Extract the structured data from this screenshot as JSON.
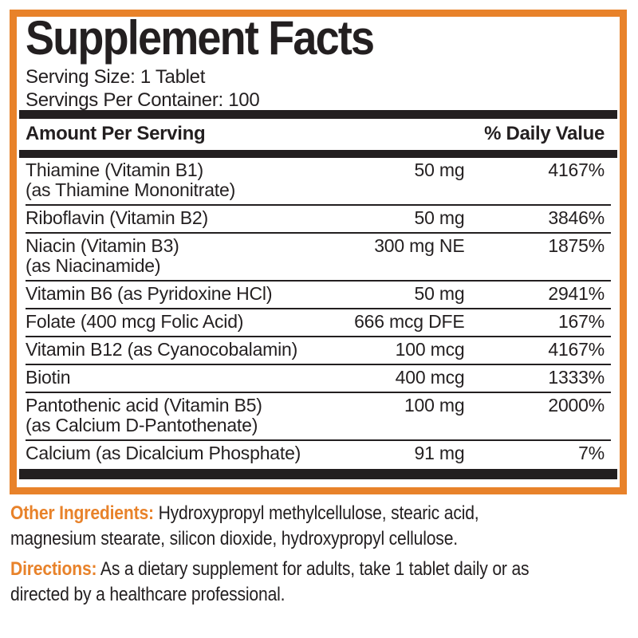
{
  "panel": {
    "title": "Supplement Facts",
    "serving_size": "Serving Size: 1 Tablet",
    "servings_per_container": "Servings Per Container: 100",
    "header": {
      "amount_per_serving": "Amount Per Serving",
      "daily_value": "% Daily Value"
    }
  },
  "nutrients": [
    {
      "name": "Thiamine (Vitamin B1)",
      "sub": "(as Thiamine Mononitrate)",
      "amount": "50 mg",
      "daily_value": "4167%"
    },
    {
      "name": "Riboflavin (Vitamin B2)",
      "sub": "",
      "amount": "50 mg",
      "daily_value": "3846%"
    },
    {
      "name": "Niacin (Vitamin B3)",
      "sub": "(as Niacinamide)",
      "amount": "300 mg NE",
      "daily_value": "1875%"
    },
    {
      "name": "Vitamin B6 (as Pyridoxine HCl)",
      "sub": "",
      "amount": "50 mg",
      "daily_value": "2941%"
    },
    {
      "name": "Folate (400 mcg Folic Acid)",
      "sub": "",
      "amount": "666 mcg DFE",
      "daily_value": "167%"
    },
    {
      "name": "Vitamin B12 (as Cyanocobalamin)",
      "sub": "",
      "amount": "100 mcg",
      "daily_value": "4167%"
    },
    {
      "name": "Biotin",
      "sub": "",
      "amount": "400 mcg",
      "daily_value": "1333%"
    },
    {
      "name": "Pantothenic acid (Vitamin B5)",
      "sub": "(as Calcium D-Pantothenate)",
      "amount": "100 mg",
      "daily_value": "2000%"
    },
    {
      "name": "Calcium (as Dicalcium Phosphate)",
      "sub": "",
      "amount": "91 mg",
      "daily_value": "7%"
    }
  ],
  "other_ingredients": {
    "label": "Other Ingredients:",
    "line1_rest": " Hydroxypropyl methylcellulose, stearic acid,",
    "line2": "magnesium stearate, silicon dioxide, hydroxypropyl cellulose."
  },
  "directions": {
    "label": "Directions:",
    "line1_rest": " As a dietary supplement for adults, take 1 tablet daily or as",
    "line2": "directed by a healthcare professional."
  },
  "colors": {
    "accent_orange": "#E8822A",
    "text_black": "#231F20"
  }
}
